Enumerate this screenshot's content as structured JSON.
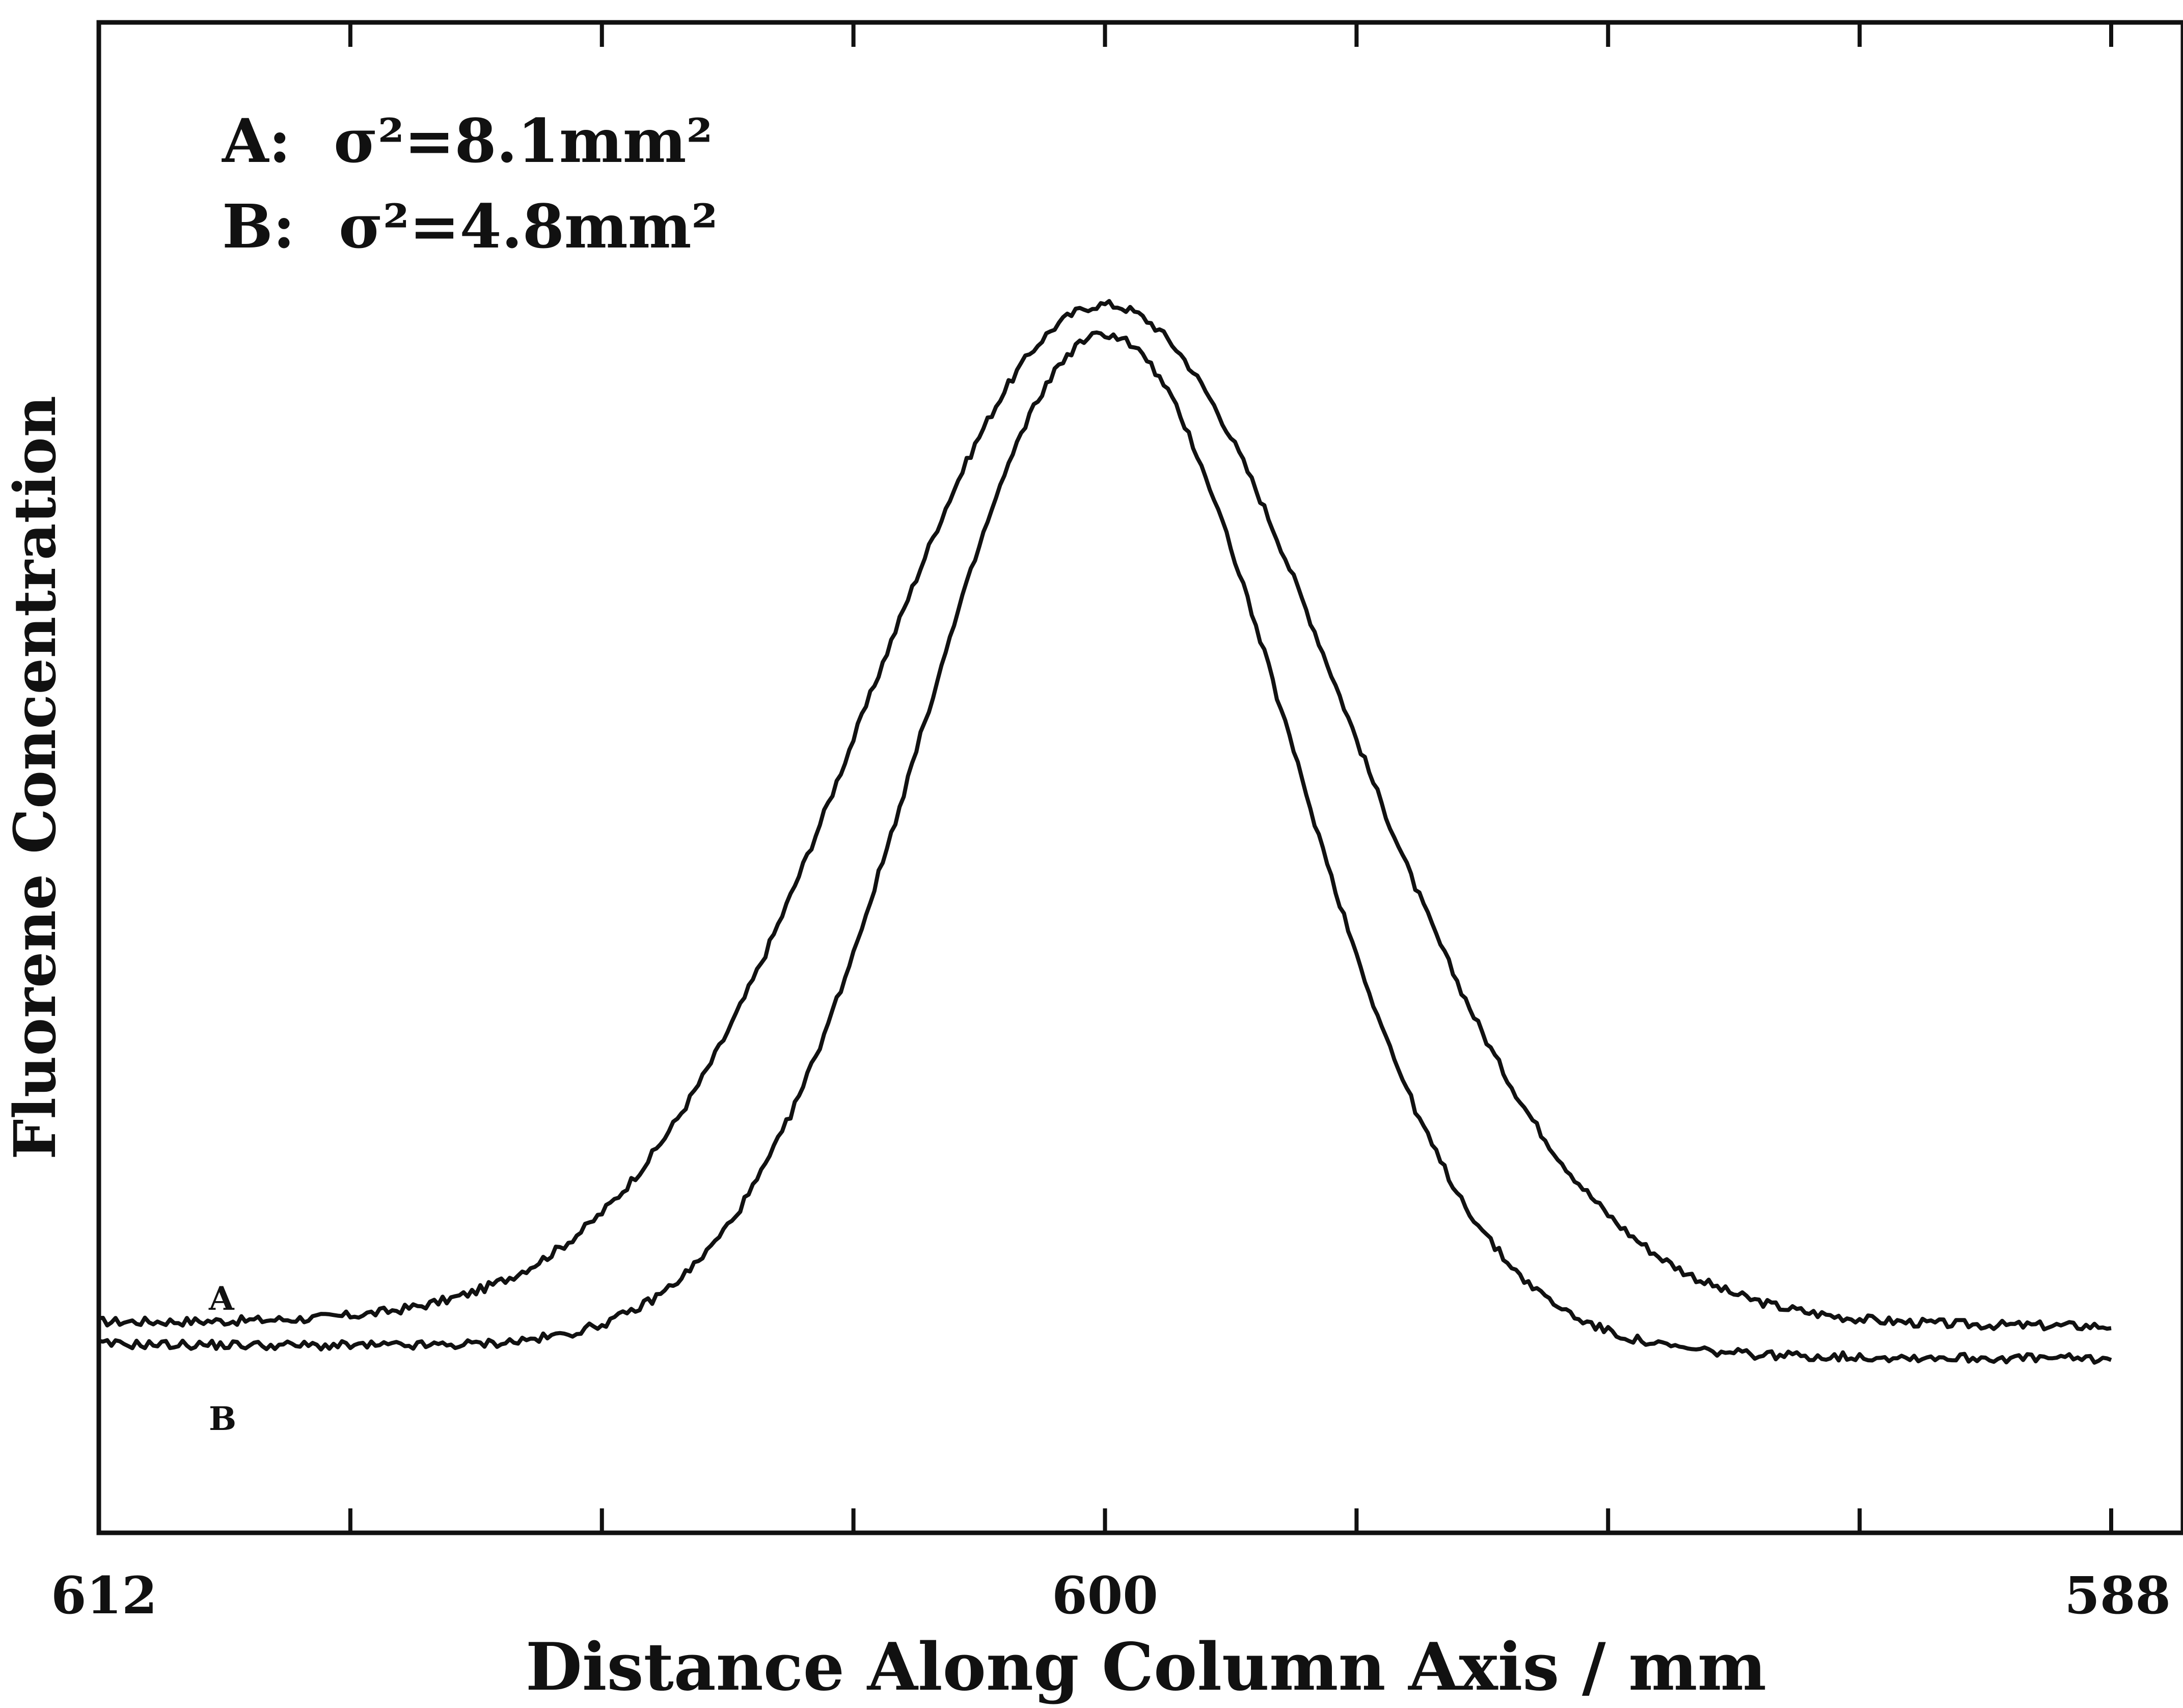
{
  "chart_data": {
    "type": "line",
    "xlabel": "Distance Along Column Axis / mm",
    "ylabel": "Fluorene Concentration",
    "xlim": [
      612,
      588
    ],
    "x_reversed": true,
    "ylim": [
      0,
      1
    ],
    "x_tick_labels": [
      "612",
      "600",
      "588"
    ],
    "x_tick_values": [
      612,
      600,
      588
    ],
    "x_minor_ticks": [
      609,
      606,
      603,
      597,
      594,
      591
    ],
    "grid": false,
    "legend": {
      "position": "top-left",
      "entries": [
        {
          "label": "A:",
          "sigma_text": "σ²=8.1mm²"
        },
        {
          "label": "B:",
          "sigma_text": "σ²=4.8mm²"
        }
      ]
    },
    "curve_labels": [
      "A",
      "B"
    ],
    "series": [
      {
        "name": "A",
        "color": "#111111",
        "baseline_left": 0.125,
        "baseline_right": 0.122,
        "peak_height": 0.81,
        "peak_x": 600,
        "sigma_sq_mm2": 8.1,
        "x_range": [
          612,
          588
        ]
      },
      {
        "name": "B",
        "color": "#111111",
        "baseline_left": 0.11,
        "baseline_right": 0.1,
        "peak_height": 0.79,
        "peak_x": 600,
        "sigma_sq_mm2": 4.8,
        "x_range": [
          612,
          588
        ]
      }
    ]
  }
}
